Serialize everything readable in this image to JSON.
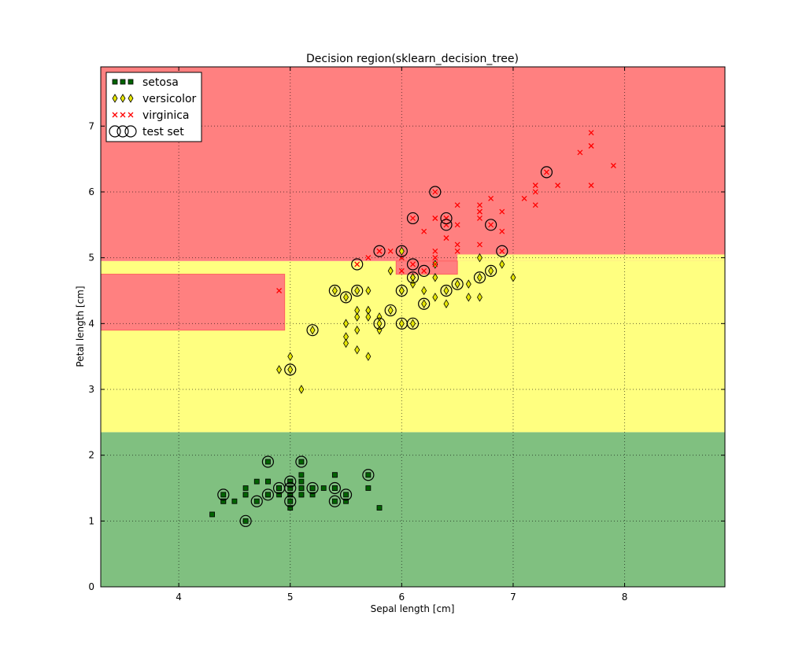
{
  "chart_data": {
    "type": "scatter",
    "title": "Decision region(sklearn_decision_tree)",
    "xlabel": "Sepal length [cm]",
    "ylabel": "Petal length [cm]",
    "xlim": [
      3.3,
      8.9
    ],
    "ylim": [
      0,
      7.9
    ],
    "xticks": [
      4,
      5,
      6,
      7,
      8
    ],
    "yticks": [
      0,
      1,
      2,
      3,
      4,
      5,
      6,
      7
    ],
    "grid": true,
    "legend_placement": "top-left",
    "legend": [
      "setosa",
      "versicolor",
      "virginica",
      "test set"
    ],
    "colors": {
      "setosa_region": "#80c080",
      "versicolor_region": "#ffff80",
      "virginica_region": "#ff8080",
      "setosa": "#006400",
      "versicolor": "#e6e600",
      "virginica": "#ff0000"
    },
    "regions": [
      {
        "class": "setosa",
        "x": [
          3.3,
          8.9
        ],
        "y": [
          0,
          2.35
        ]
      },
      {
        "class": "versicolor",
        "x": [
          3.3,
          8.9
        ],
        "y": [
          2.35,
          4.95
        ]
      },
      {
        "class": "virginica",
        "x": [
          3.3,
          8.9
        ],
        "y": [
          4.95,
          7.9
        ]
      },
      {
        "class": "versicolor",
        "x": [
          6.5,
          8.9
        ],
        "y": [
          4.95,
          5.05
        ]
      },
      {
        "class": "virginica",
        "x": [
          5.95,
          6.5
        ],
        "y": [
          4.75,
          4.95
        ]
      },
      {
        "class": "virginica",
        "x": [
          3.3,
          4.95
        ],
        "y": [
          3.9,
          4.75
        ]
      }
    ],
    "series": [
      {
        "name": "setosa",
        "marker": "square",
        "points": [
          [
            5.1,
            1.4
          ],
          [
            4.9,
            1.4
          ],
          [
            4.7,
            1.3
          ],
          [
            4.6,
            1.5
          ],
          [
            5.0,
            1.4
          ],
          [
            5.4,
            1.7
          ],
          [
            4.6,
            1.4
          ],
          [
            5.0,
            1.5
          ],
          [
            4.4,
            1.4
          ],
          [
            4.9,
            1.5
          ],
          [
            5.4,
            1.5
          ],
          [
            4.8,
            1.6
          ],
          [
            4.8,
            1.4
          ],
          [
            4.3,
            1.1
          ],
          [
            5.8,
            1.2
          ],
          [
            5.7,
            1.5
          ],
          [
            5.4,
            1.3
          ],
          [
            5.1,
            1.4
          ],
          [
            5.7,
            1.7
          ],
          [
            5.1,
            1.5
          ],
          [
            5.4,
            1.7
          ],
          [
            5.1,
            1.5
          ],
          [
            4.6,
            1.0
          ],
          [
            5.1,
            1.7
          ],
          [
            4.8,
            1.9
          ],
          [
            5.0,
            1.6
          ],
          [
            5.0,
            1.6
          ],
          [
            5.2,
            1.5
          ],
          [
            5.2,
            1.4
          ],
          [
            4.7,
            1.6
          ],
          [
            4.8,
            1.6
          ],
          [
            5.4,
            1.5
          ],
          [
            5.2,
            1.5
          ],
          [
            5.5,
            1.4
          ],
          [
            4.9,
            1.5
          ],
          [
            5.0,
            1.2
          ],
          [
            5.5,
            1.3
          ],
          [
            4.9,
            1.5
          ],
          [
            4.4,
            1.3
          ],
          [
            5.1,
            1.5
          ],
          [
            5.0,
            1.3
          ],
          [
            4.5,
            1.3
          ],
          [
            4.4,
            1.3
          ],
          [
            5.0,
            1.6
          ],
          [
            5.1,
            1.9
          ],
          [
            4.8,
            1.4
          ],
          [
            5.1,
            1.6
          ],
          [
            4.6,
            1.4
          ],
          [
            5.3,
            1.5
          ],
          [
            5.0,
            1.4
          ]
        ]
      },
      {
        "name": "versicolor",
        "marker": "diamond",
        "points": [
          [
            7.0,
            4.7
          ],
          [
            6.4,
            4.5
          ],
          [
            6.9,
            4.9
          ],
          [
            5.5,
            4.0
          ],
          [
            6.5,
            4.6
          ],
          [
            5.7,
            4.5
          ],
          [
            6.3,
            4.7
          ],
          [
            4.9,
            3.3
          ],
          [
            6.6,
            4.6
          ],
          [
            5.2,
            3.9
          ],
          [
            5.0,
            3.5
          ],
          [
            5.9,
            4.2
          ],
          [
            6.0,
            4.0
          ],
          [
            6.1,
            4.7
          ],
          [
            5.6,
            3.6
          ],
          [
            6.7,
            4.4
          ],
          [
            5.6,
            4.5
          ],
          [
            5.8,
            4.1
          ],
          [
            6.2,
            4.5
          ],
          [
            5.6,
            3.9
          ],
          [
            5.9,
            4.8
          ],
          [
            6.1,
            4.0
          ],
          [
            6.3,
            4.9
          ],
          [
            6.1,
            4.7
          ],
          [
            6.4,
            4.3
          ],
          [
            6.6,
            4.4
          ],
          [
            6.8,
            4.8
          ],
          [
            6.7,
            5.0
          ],
          [
            6.0,
            4.5
          ],
          [
            5.7,
            3.5
          ],
          [
            5.5,
            3.8
          ],
          [
            5.5,
            3.7
          ],
          [
            5.8,
            3.9
          ],
          [
            6.0,
            5.1
          ],
          [
            5.4,
            4.5
          ],
          [
            6.0,
            4.5
          ],
          [
            6.7,
            4.7
          ],
          [
            6.3,
            4.4
          ],
          [
            5.6,
            4.1
          ],
          [
            5.5,
            4.0
          ],
          [
            5.5,
            4.4
          ],
          [
            6.1,
            4.6
          ],
          [
            5.8,
            4.0
          ],
          [
            5.0,
            3.3
          ],
          [
            5.6,
            4.2
          ],
          [
            5.7,
            4.2
          ],
          [
            5.7,
            4.2
          ],
          [
            6.2,
            4.3
          ],
          [
            5.1,
            3.0
          ],
          [
            5.7,
            4.1
          ]
        ]
      },
      {
        "name": "virginica",
        "marker": "x",
        "points": [
          [
            6.3,
            6.0
          ],
          [
            5.8,
            5.1
          ],
          [
            7.1,
            5.9
          ],
          [
            6.3,
            5.6
          ],
          [
            6.5,
            5.8
          ],
          [
            7.6,
            6.6
          ],
          [
            4.9,
            4.5
          ],
          [
            7.3,
            6.3
          ],
          [
            6.7,
            5.8
          ],
          [
            7.2,
            6.1
          ],
          [
            6.5,
            5.1
          ],
          [
            6.4,
            5.3
          ],
          [
            6.8,
            5.5
          ],
          [
            5.7,
            5.0
          ],
          [
            5.8,
            5.1
          ],
          [
            6.4,
            5.3
          ],
          [
            6.5,
            5.5
          ],
          [
            7.7,
            6.7
          ],
          [
            7.7,
            6.9
          ],
          [
            6.0,
            5.0
          ],
          [
            6.9,
            5.7
          ],
          [
            5.6,
            4.9
          ],
          [
            7.7,
            6.7
          ],
          [
            6.3,
            4.9
          ],
          [
            6.7,
            5.7
          ],
          [
            7.2,
            6.0
          ],
          [
            6.2,
            4.8
          ],
          [
            6.1,
            4.9
          ],
          [
            6.4,
            5.6
          ],
          [
            7.2,
            5.8
          ],
          [
            7.4,
            6.1
          ],
          [
            7.9,
            6.4
          ],
          [
            6.4,
            5.6
          ],
          [
            6.3,
            5.1
          ],
          [
            6.1,
            5.6
          ],
          [
            7.7,
            6.1
          ],
          [
            6.3,
            5.6
          ],
          [
            6.4,
            5.5
          ],
          [
            6.0,
            4.8
          ],
          [
            6.9,
            5.4
          ],
          [
            6.7,
            5.6
          ],
          [
            6.9,
            5.1
          ],
          [
            5.8,
            5.1
          ],
          [
            6.8,
            5.9
          ],
          [
            6.7,
            5.7
          ],
          [
            6.7,
            5.2
          ],
          [
            6.3,
            5.0
          ],
          [
            6.5,
            5.2
          ],
          [
            6.2,
            5.4
          ],
          [
            5.9,
            5.1
          ]
        ]
      },
      {
        "name": "test set",
        "marker": "circle",
        "points": [
          [
            4.4,
            1.4
          ],
          [
            4.6,
            1.0
          ],
          [
            4.7,
            1.3
          ],
          [
            4.8,
            1.9
          ],
          [
            4.8,
            1.4
          ],
          [
            4.9,
            1.5
          ],
          [
            5.0,
            1.6
          ],
          [
            5.0,
            1.5
          ],
          [
            5.0,
            1.3
          ],
          [
            5.1,
            1.9
          ],
          [
            5.2,
            1.5
          ],
          [
            5.4,
            1.5
          ],
          [
            5.4,
            1.3
          ],
          [
            5.5,
            1.4
          ],
          [
            5.7,
            1.7
          ],
          [
            5.0,
            3.3
          ],
          [
            5.2,
            3.9
          ],
          [
            5.4,
            4.5
          ],
          [
            5.5,
            4.4
          ],
          [
            5.6,
            4.5
          ],
          [
            5.8,
            4.0
          ],
          [
            5.9,
            4.2
          ],
          [
            6.0,
            4.5
          ],
          [
            6.0,
            4.0
          ],
          [
            6.1,
            4.0
          ],
          [
            6.1,
            4.7
          ],
          [
            6.2,
            4.3
          ],
          [
            6.4,
            4.5
          ],
          [
            6.5,
            4.6
          ],
          [
            6.7,
            4.7
          ],
          [
            6.8,
            4.8
          ],
          [
            6.0,
            5.1
          ],
          [
            5.6,
            4.9
          ],
          [
            5.8,
            5.1
          ],
          [
            6.1,
            5.6
          ],
          [
            6.3,
            6.0
          ],
          [
            6.4,
            5.6
          ],
          [
            6.4,
            5.5
          ],
          [
            6.8,
            5.5
          ],
          [
            6.9,
            5.1
          ],
          [
            7.3,
            6.3
          ],
          [
            6.2,
            4.8
          ],
          [
            6.1,
            4.9
          ]
        ]
      }
    ]
  }
}
